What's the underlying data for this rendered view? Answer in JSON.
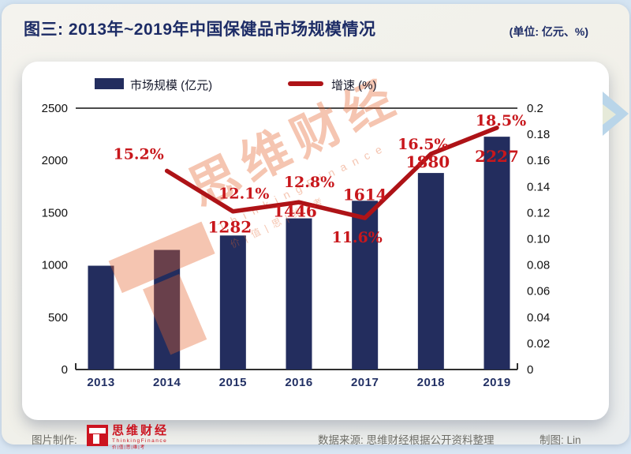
{
  "header": {
    "title": "图三: 2013年~2019年中国保健品市场规模情况",
    "unit_note": "(单位: 亿元、%)"
  },
  "legend": [
    {
      "label": "市场规模 (亿元)",
      "type": "bar",
      "color": "#232d5e"
    },
    {
      "label": "增速 (%)",
      "type": "line",
      "color": "#ae1317"
    }
  ],
  "chart_data": {
    "type": "bar",
    "title": "图三: 2013年~2019年中国保健品市场规模情况",
    "categories": [
      "2013",
      "2014",
      "2015",
      "2016",
      "2017",
      "2018",
      "2019"
    ],
    "series": [
      {
        "name": "市场规模 (亿元)",
        "type": "bar",
        "axis": "left",
        "values": [
          993,
          1144,
          1282,
          1446,
          1614,
          1880,
          2227
        ],
        "visible_labels": [
          null,
          null,
          "1282",
          "1446",
          "1614",
          "1880",
          "2227"
        ],
        "color": "#232d5e"
      },
      {
        "name": "增速 (%)",
        "type": "line",
        "axis": "right",
        "categories": [
          "2014",
          "2015",
          "2016",
          "2017",
          "2018",
          "2019"
        ],
        "values": [
          0.152,
          0.121,
          0.128,
          0.116,
          0.165,
          0.185
        ],
        "visible_labels": [
          "15.2%",
          "12.1%",
          "12.8%",
          "11.6%",
          "16.5%",
          "18.5%"
        ],
        "color": "#ae1317"
      }
    ],
    "left_axis": {
      "range": [
        0,
        2500
      ],
      "ticks": [
        "0",
        "500",
        "1000",
        "1500",
        "2000",
        "2500"
      ]
    },
    "right_axis": {
      "range": [
        0,
        0.2
      ],
      "ticks": [
        "0",
        "0.02",
        "0.04",
        "0.06",
        "0.08",
        "0.10",
        "0.12",
        "0.14",
        "0.16",
        "0.18",
        "0.2"
      ]
    },
    "label_color": "#c8171c",
    "grid": "top-line-only",
    "legend_position": "top"
  },
  "watermark": {
    "main": "思维财经",
    "sub": "ThinkingFinance",
    "sub2": "价|值|思|维|考",
    "color": "#e4622a"
  },
  "footer": {
    "credit_label": "图片制作:",
    "logo_name": "思维财经",
    "logo_sub": "ThinkingFinance",
    "logo_sub2": "价|值|思|维|考",
    "source": "数据来源: 思维财经根据公开资料整理",
    "author": "制图: Lin"
  }
}
